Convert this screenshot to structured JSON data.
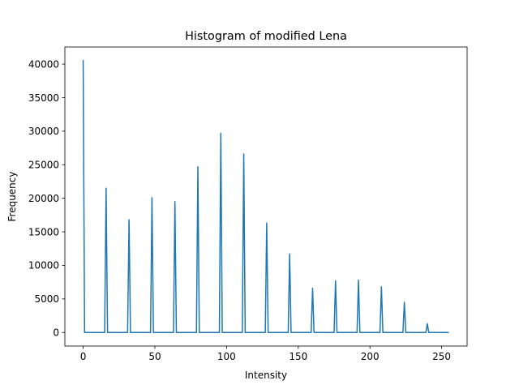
{
  "chart_data": {
    "type": "line",
    "title": "Histogram of modified Lena",
    "xlabel": "Intensity",
    "ylabel": "Frequency",
    "xlim": [
      -12.75,
      267.75
    ],
    "ylim": [
      -2026,
      42544
    ],
    "x_ticks": [
      0,
      50,
      100,
      150,
      200,
      250
    ],
    "y_ticks": [
      0,
      5000,
      10000,
      15000,
      20000,
      25000,
      30000,
      35000,
      40000
    ],
    "x_tick_labels": [
      "0",
      "50",
      "100",
      "150",
      "200",
      "250"
    ],
    "y_tick_labels": [
      "0",
      "5000",
      "10000",
      "15000",
      "20000",
      "25000",
      "30000",
      "35000",
      "40000"
    ],
    "grid": false,
    "line_color": "#1f77b4",
    "x_range": [
      0,
      255
    ],
    "baseline": 0,
    "peaks": [
      {
        "x": 0,
        "y": 40600
      },
      {
        "x": 16,
        "y": 21500
      },
      {
        "x": 32,
        "y": 16800
      },
      {
        "x": 48,
        "y": 20100
      },
      {
        "x": 64,
        "y": 19500
      },
      {
        "x": 80,
        "y": 24700
      },
      {
        "x": 96,
        "y": 29700
      },
      {
        "x": 112,
        "y": 26600
      },
      {
        "x": 128,
        "y": 16300
      },
      {
        "x": 144,
        "y": 11700
      },
      {
        "x": 160,
        "y": 6600
      },
      {
        "x": 176,
        "y": 7700
      },
      {
        "x": 192,
        "y": 7800
      },
      {
        "x": 208,
        "y": 6800
      },
      {
        "x": 224,
        "y": 4500
      },
      {
        "x": 240,
        "y": 1300
      }
    ]
  }
}
